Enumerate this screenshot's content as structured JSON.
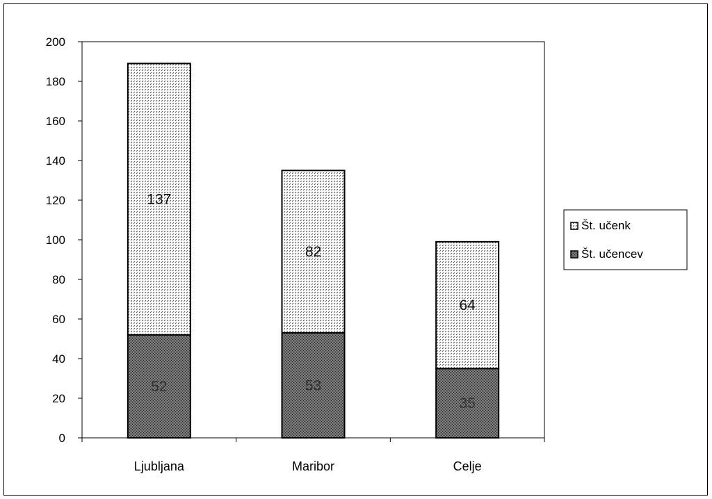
{
  "chart_data": {
    "type": "bar",
    "stacked": true,
    "categories": [
      "Ljubljana",
      "Maribor",
      "Celje"
    ],
    "series": [
      {
        "name": "Št. učencev",
        "values": [
          52,
          53,
          35
        ],
        "color": "#555555",
        "pattern": "dark-dots"
      },
      {
        "name": "Št. učenk",
        "values": [
          137,
          82,
          64
        ],
        "color": "#ffffff",
        "pattern": "light-dots"
      }
    ],
    "title": "",
    "xlabel": "",
    "ylabel": "",
    "ylim": [
      0,
      200
    ],
    "yticks": [
      0,
      20,
      40,
      60,
      80,
      100,
      120,
      140,
      160,
      180,
      200
    ],
    "grid": false,
    "legend_position": "right",
    "legend_order": [
      "Št. učenk",
      "Št. učencev"
    ]
  }
}
